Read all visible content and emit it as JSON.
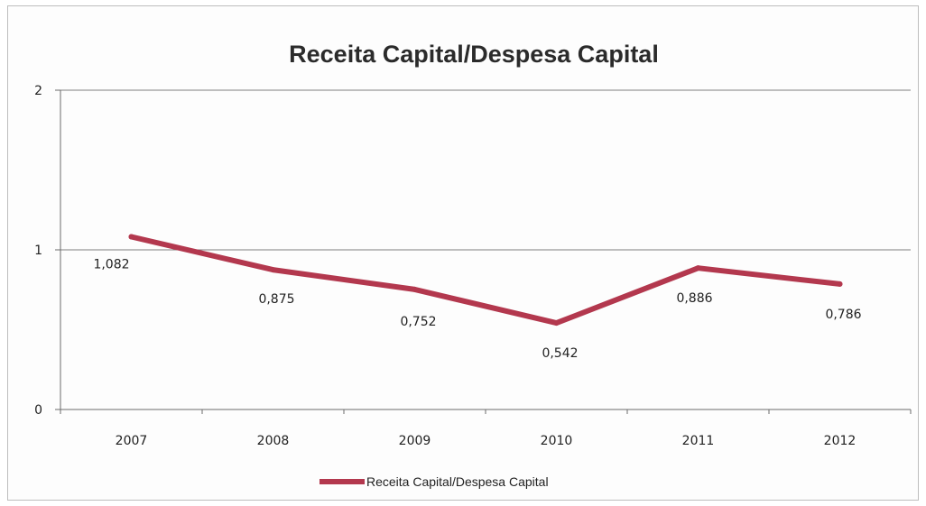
{
  "chart_data": {
    "type": "line",
    "title": "Receita Capital/Despesa Capital",
    "xlabel": "",
    "ylabel": "",
    "categories": [
      "2007",
      "2008",
      "2009",
      "2010",
      "2011",
      "2012"
    ],
    "series": [
      {
        "name": "Receita Capital/Despesa Capital",
        "values": [
          1.082,
          0.875,
          0.752,
          0.542,
          0.886,
          0.786
        ],
        "labels": [
          "1,082",
          "0,875",
          "0,752",
          "0,542",
          "0,886",
          "0,786"
        ],
        "color": "#b3384e"
      }
    ],
    "ylim": [
      0,
      2
    ],
    "yticks": [
      0,
      1,
      2
    ],
    "ytick_labels": [
      "0",
      "1",
      "2"
    ],
    "grid": true,
    "gridline_color": "#7f7f7f",
    "legend_position": "bottom"
  }
}
